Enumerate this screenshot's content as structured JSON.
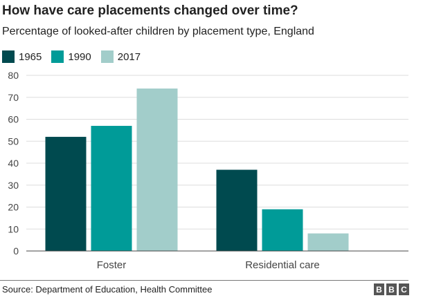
{
  "title": "How have care placements changed over time?",
  "subtitle": "Percentage of looked-after children by placement type, England",
  "source": "Source: Department of Education, Health Committee",
  "logo": {
    "letters": [
      "B",
      "B",
      "C"
    ]
  },
  "chart_data": {
    "type": "bar",
    "categories": [
      "Foster",
      "Residential care"
    ],
    "series": [
      {
        "name": "1965",
        "color": "#004a4f",
        "values": [
          52,
          37
        ]
      },
      {
        "name": "1990",
        "color": "#009b98",
        "values": [
          57,
          19
        ]
      },
      {
        "name": "2017",
        "color": "#a2cdca",
        "values": [
          74,
          8
        ]
      }
    ],
    "yticks": [
      "0",
      "10",
      "20",
      "30",
      "40",
      "50",
      "60",
      "70",
      "80"
    ],
    "ylim": [
      0,
      80
    ],
    "grid": true,
    "legend": "top-left"
  }
}
